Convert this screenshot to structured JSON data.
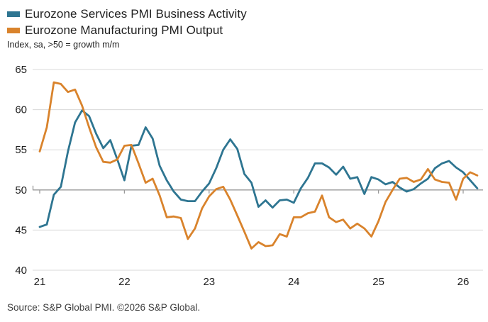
{
  "legend": [
    {
      "label": "Eurozone Services PMI Business Activity",
      "color": "#2E7591"
    },
    {
      "label": "Eurozone Manufacturing PMI Output",
      "color": "#D9832C"
    }
  ],
  "subtitle": "Index, sa, >50 = growth m/m",
  "source": "Source: S&P Global PMI. ©2026 S&P Global.",
  "chart_data": {
    "type": "line",
    "title": "Eurozone Services PMI Business Activity vs Eurozone Manufacturing PMI Output",
    "ylabel": "Index, sa, >50 = growth m/m",
    "x_unit": "month",
    "x_start": "2021-01",
    "x_end": "2026-03",
    "x_tick_labels": [
      "21",
      "22",
      "23",
      "24",
      "25",
      "26"
    ],
    "y_ticks": [
      40,
      45,
      50,
      55,
      60,
      65
    ],
    "ylim": [
      40,
      65
    ],
    "baseline_value": 50,
    "grid": true,
    "legend_position": "top-left",
    "colors": {
      "gridline": "#D8D8D8",
      "baseline_axis": "#9A9A9A",
      "tick_text": "#1f1f1f"
    },
    "series": [
      {
        "name": "Eurozone Services PMI Business Activity",
        "color": "#2E7591",
        "values": [
          45.4,
          45.7,
          49.4,
          50.4,
          54.8,
          58.4,
          59.9,
          59.2,
          57.0,
          55.2,
          56.2,
          53.8,
          51.2,
          55.5,
          55.6,
          57.8,
          56.4,
          53.0,
          51.2,
          49.8,
          48.8,
          48.6,
          48.6,
          49.8,
          50.8,
          52.7,
          55.0,
          56.3,
          55.1,
          52.0,
          50.9,
          47.9,
          48.7,
          47.8,
          48.7,
          48.8,
          48.4,
          50.2,
          51.5,
          53.3,
          53.3,
          52.8,
          51.9,
          52.9,
          51.4,
          51.6,
          49.5,
          51.6,
          51.3,
          50.7,
          51.0,
          50.3,
          49.8,
          50.1,
          50.8,
          51.4,
          52.7,
          53.3,
          53.6,
          52.8,
          52.2,
          51.2,
          50.2
        ]
      },
      {
        "name": "Eurozone Manufacturing PMI Output",
        "color": "#D9832C",
        "values": [
          54.8,
          57.8,
          63.4,
          63.2,
          62.2,
          62.5,
          60.5,
          57.8,
          55.3,
          53.5,
          53.4,
          53.8,
          55.5,
          55.6,
          53.3,
          50.9,
          51.4,
          49.3,
          46.6,
          46.7,
          46.5,
          43.9,
          45.2,
          47.7,
          49.2,
          50.1,
          50.4,
          48.8,
          46.8,
          44.8,
          42.7,
          43.5,
          43.0,
          43.1,
          44.5,
          44.2,
          46.6,
          46.6,
          47.1,
          47.3,
          49.3,
          46.6,
          46.0,
          46.3,
          45.2,
          45.8,
          45.2,
          44.2,
          46.1,
          48.5,
          50.0,
          51.4,
          51.5,
          51.0,
          51.3,
          52.6,
          51.3,
          51.0,
          50.9,
          48.8,
          51.4,
          52.2,
          51.8
        ]
      }
    ]
  }
}
